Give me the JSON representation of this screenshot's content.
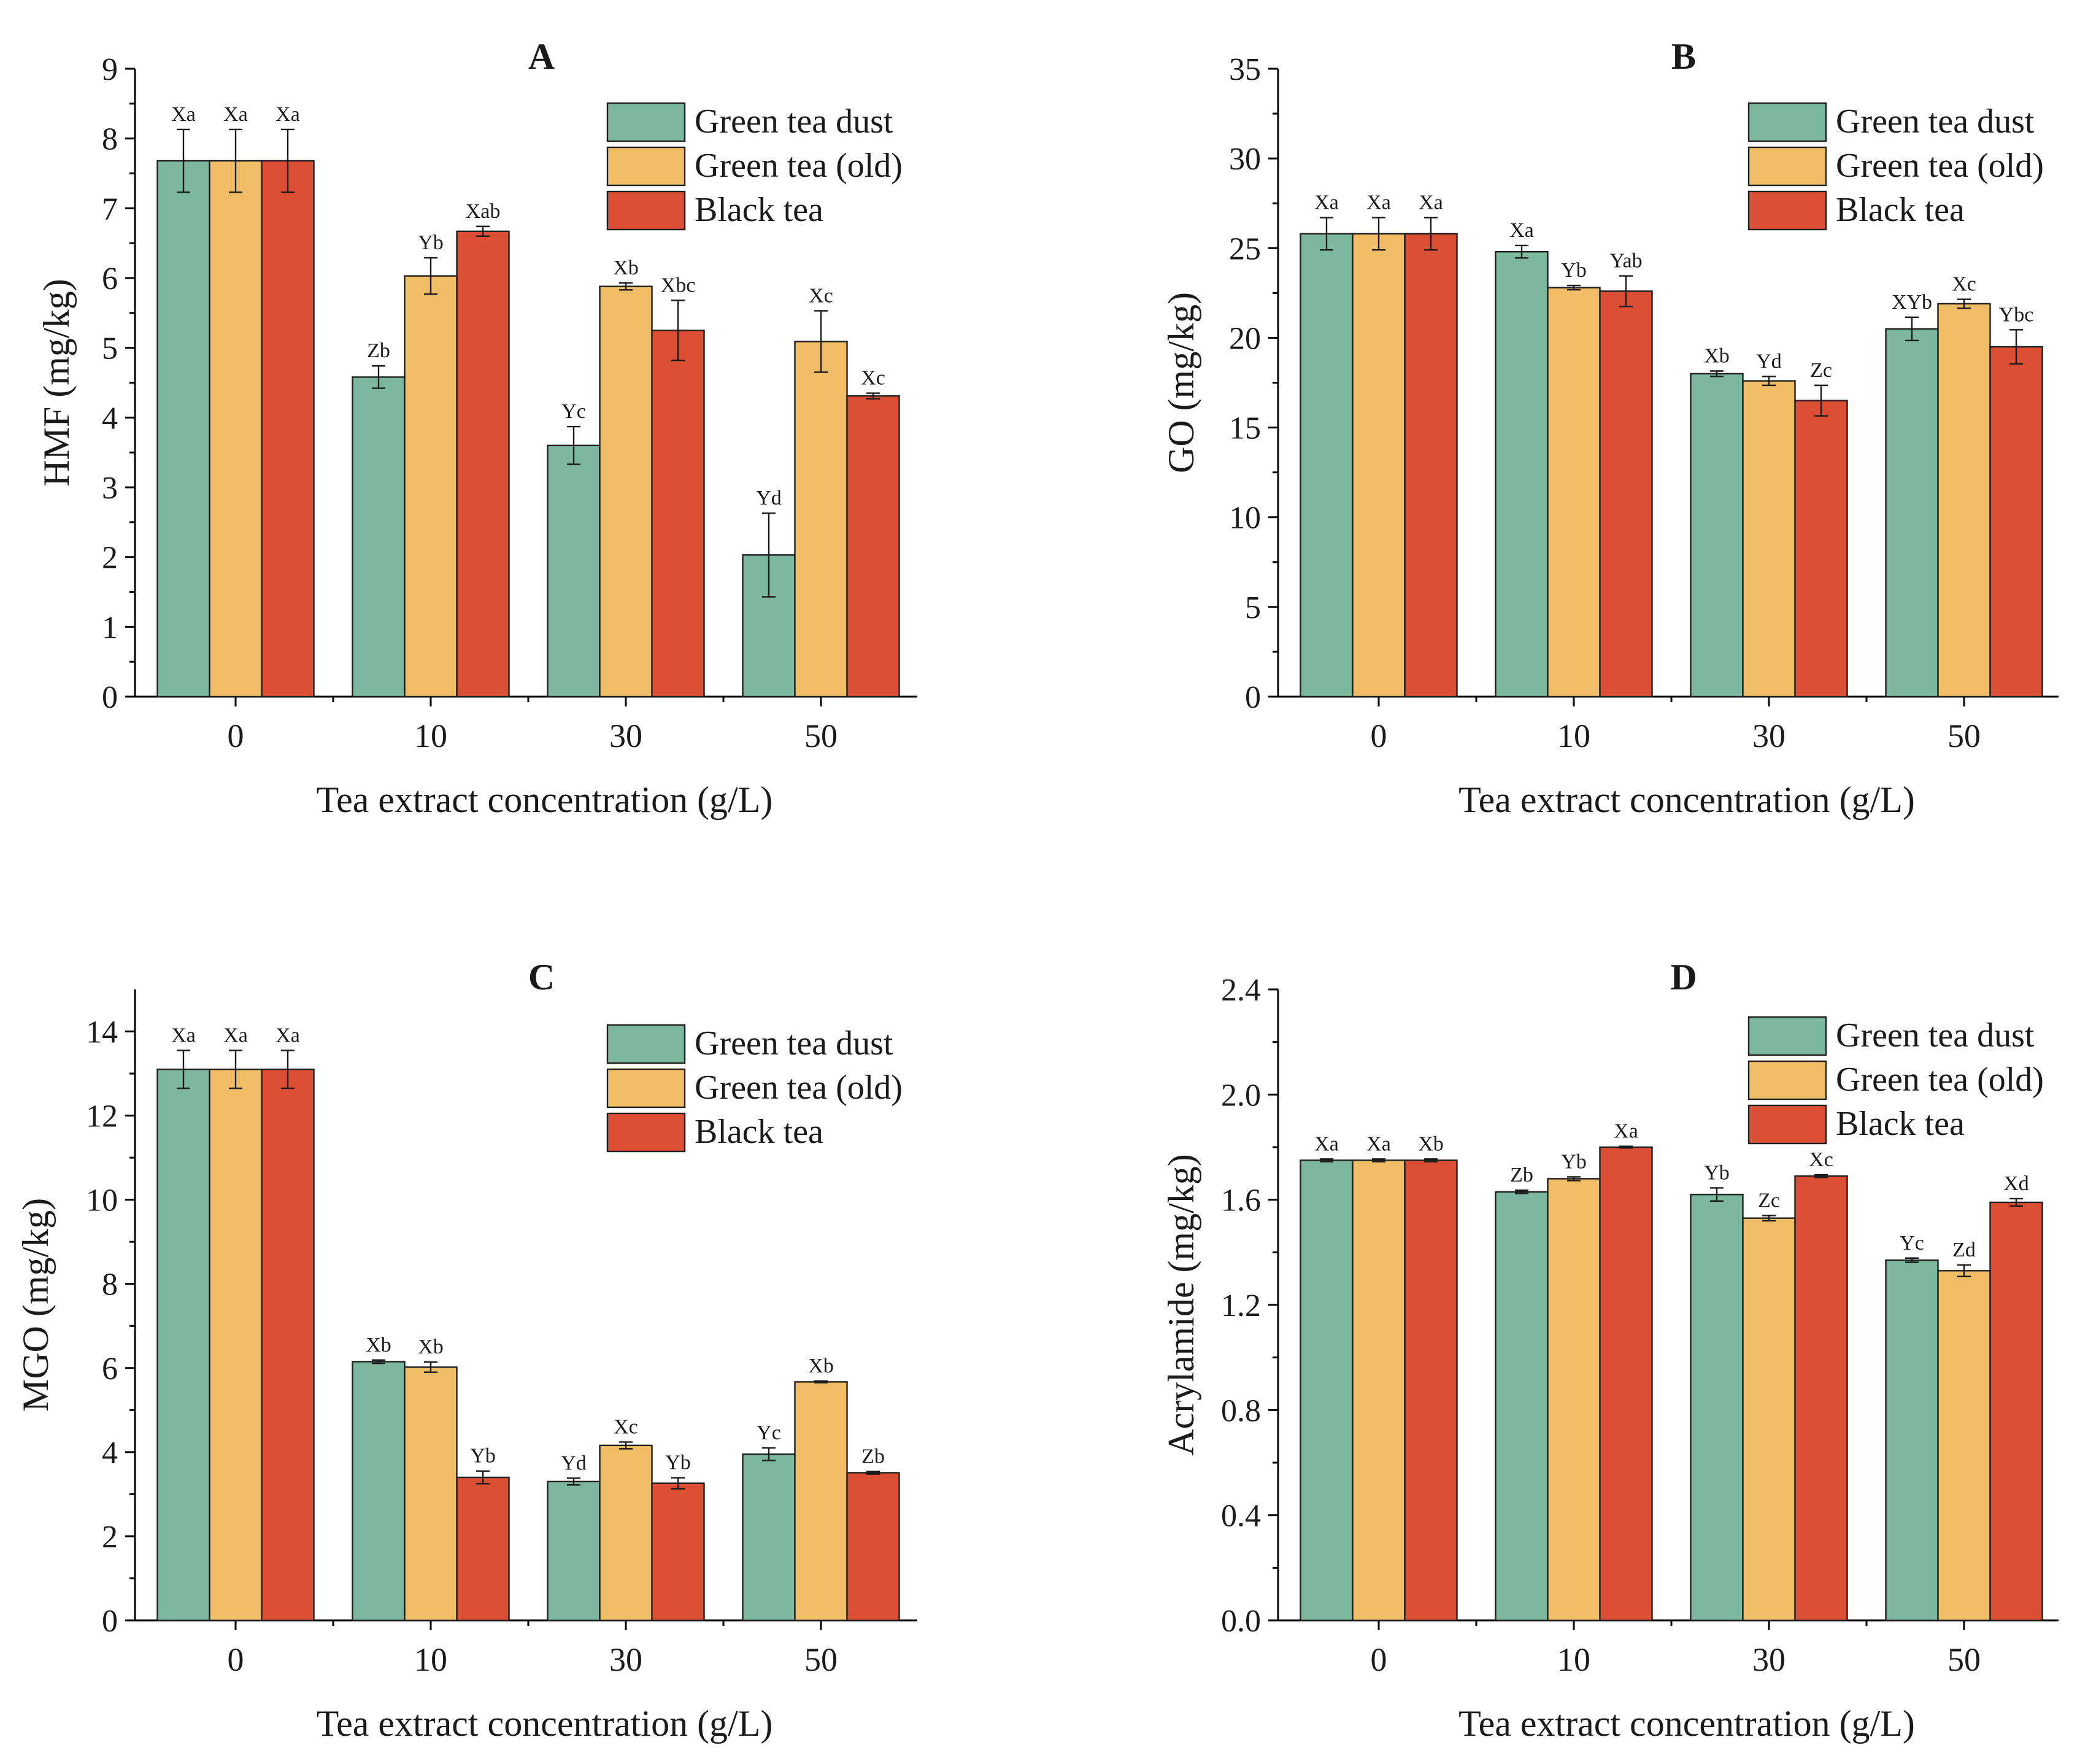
{
  "chart_data": [
    {
      "type": "bar",
      "panel_letter": "A",
      "ylabel": "HMF (mg/kg)",
      "xlabel": "Tea extract concentration (g/L)",
      "categories": [
        "0",
        "10",
        "30",
        "50"
      ],
      "ylim": [
        0,
        9
      ],
      "yticks": [
        "0",
        "1",
        "2",
        "3",
        "4",
        "5",
        "6",
        "7",
        "8",
        "9"
      ],
      "legend_position": "top-right",
      "series": [
        {
          "name": "Green tea dust",
          "values": [
            7.68,
            4.58,
            3.6,
            2.03
          ],
          "errors": [
            0.45,
            0.16,
            0.27,
            0.6
          ],
          "letters": [
            "Xa",
            "Zb",
            "Yc",
            "Yd"
          ]
        },
        {
          "name": "Green tea (old)",
          "values": [
            7.68,
            6.03,
            5.88,
            5.09
          ],
          "errors": [
            0.45,
            0.26,
            0.05,
            0.44
          ],
          "letters": [
            "Xa",
            "Yb",
            "Xb",
            "Xc"
          ]
        },
        {
          "name": "Black tea",
          "values": [
            7.68,
            6.67,
            5.25,
            4.31
          ],
          "errors": [
            0.45,
            0.07,
            0.43,
            0.04
          ],
          "letters": [
            "Xa",
            "Xab",
            "Xbc",
            "Xc"
          ]
        }
      ]
    },
    {
      "type": "bar",
      "panel_letter": "B",
      "ylabel": "GO (mg/kg)",
      "xlabel": "Tea extract concentration (g/L)",
      "categories": [
        "0",
        "10",
        "30",
        "50"
      ],
      "ylim": [
        0,
        35
      ],
      "yticks": [
        "0",
        "5",
        "10",
        "15",
        "20",
        "25",
        "30",
        "35"
      ],
      "legend_position": "top-right",
      "series": [
        {
          "name": "Green tea dust",
          "values": [
            25.8,
            24.8,
            18.0,
            20.5
          ],
          "errors": [
            0.9,
            0.35,
            0.15,
            0.65
          ],
          "letters": [
            "Xa",
            "Xa",
            "Xb",
            "XYb"
          ]
        },
        {
          "name": "Green tea (old)",
          "values": [
            25.8,
            22.8,
            17.6,
            21.9
          ],
          "errors": [
            0.9,
            0.12,
            0.25,
            0.25
          ],
          "letters": [
            "Xa",
            "Yb",
            "Yd",
            "Xc"
          ]
        },
        {
          "name": "Black tea",
          "values": [
            25.8,
            22.6,
            16.5,
            19.5
          ],
          "errors": [
            0.9,
            0.85,
            0.85,
            0.95
          ],
          "letters": [
            "Xa",
            "Yab",
            "Zc",
            "Ybc"
          ]
        }
      ]
    },
    {
      "type": "bar",
      "panel_letter": "C",
      "ylabel": "MGO (mg/kg)",
      "xlabel": "Tea extract concentration (g/L)",
      "categories": [
        "0",
        "10",
        "30",
        "50"
      ],
      "ylim": [
        0,
        15
      ],
      "yticks": [
        "0",
        "2",
        "4",
        "6",
        "8",
        "10",
        "12",
        "14"
      ],
      "legend_position": "top-right",
      "series": [
        {
          "name": "Green tea dust",
          "values": [
            13.1,
            6.15,
            3.3,
            3.95
          ],
          "errors": [
            0.45,
            0.04,
            0.08,
            0.15
          ],
          "letters": [
            "Xa",
            "Xb",
            "Yd",
            "Yc"
          ]
        },
        {
          "name": "Green tea (old)",
          "values": [
            13.1,
            6.02,
            4.16,
            5.67
          ],
          "errors": [
            0.45,
            0.12,
            0.08,
            0.02
          ],
          "letters": [
            "Xa",
            "Xb",
            "Xc",
            "Xb"
          ]
        },
        {
          "name": "Black tea",
          "values": [
            13.1,
            3.4,
            3.26,
            3.51
          ],
          "errors": [
            0.45,
            0.15,
            0.13,
            0.03
          ],
          "letters": [
            "Xa",
            "Yb",
            "Yb",
            "Zb"
          ]
        }
      ]
    },
    {
      "type": "bar",
      "panel_letter": "D",
      "ylabel": "Acrylamide (mg/kg)",
      "xlabel": "Tea extract concentration (g/L)",
      "categories": [
        "0",
        "10",
        "30",
        "50"
      ],
      "ylim": [
        0,
        2.4
      ],
      "yticks": [
        "0.0",
        "0.4",
        "0.8",
        "1.2",
        "1.6",
        "2.0",
        "2.4"
      ],
      "legend_position": "top-right",
      "series": [
        {
          "name": "Green tea dust",
          "values": [
            1.75,
            1.63,
            1.62,
            1.37
          ],
          "errors": [
            0.005,
            0.006,
            0.025,
            0.008
          ],
          "letters": [
            "Xa",
            "Zb",
            "Yb",
            "Yc"
          ]
        },
        {
          "name": "Green tea (old)",
          "values": [
            1.75,
            1.68,
            1.53,
            1.33
          ],
          "errors": [
            0.005,
            0.007,
            0.01,
            0.022
          ],
          "letters": [
            "Xa",
            "Yb",
            "Zc",
            "Zd"
          ]
        },
        {
          "name": "Black tea",
          "values": [
            1.75,
            1.8,
            1.69,
            1.59
          ],
          "errors": [
            0.005,
            0.003,
            0.005,
            0.014
          ],
          "letters": [
            "Xb",
            "Xa",
            "Xc",
            "Xd"
          ]
        }
      ]
    }
  ],
  "colors": {
    "series": [
      "#7bb89e",
      "#f0bd67",
      "#db4f34"
    ]
  }
}
